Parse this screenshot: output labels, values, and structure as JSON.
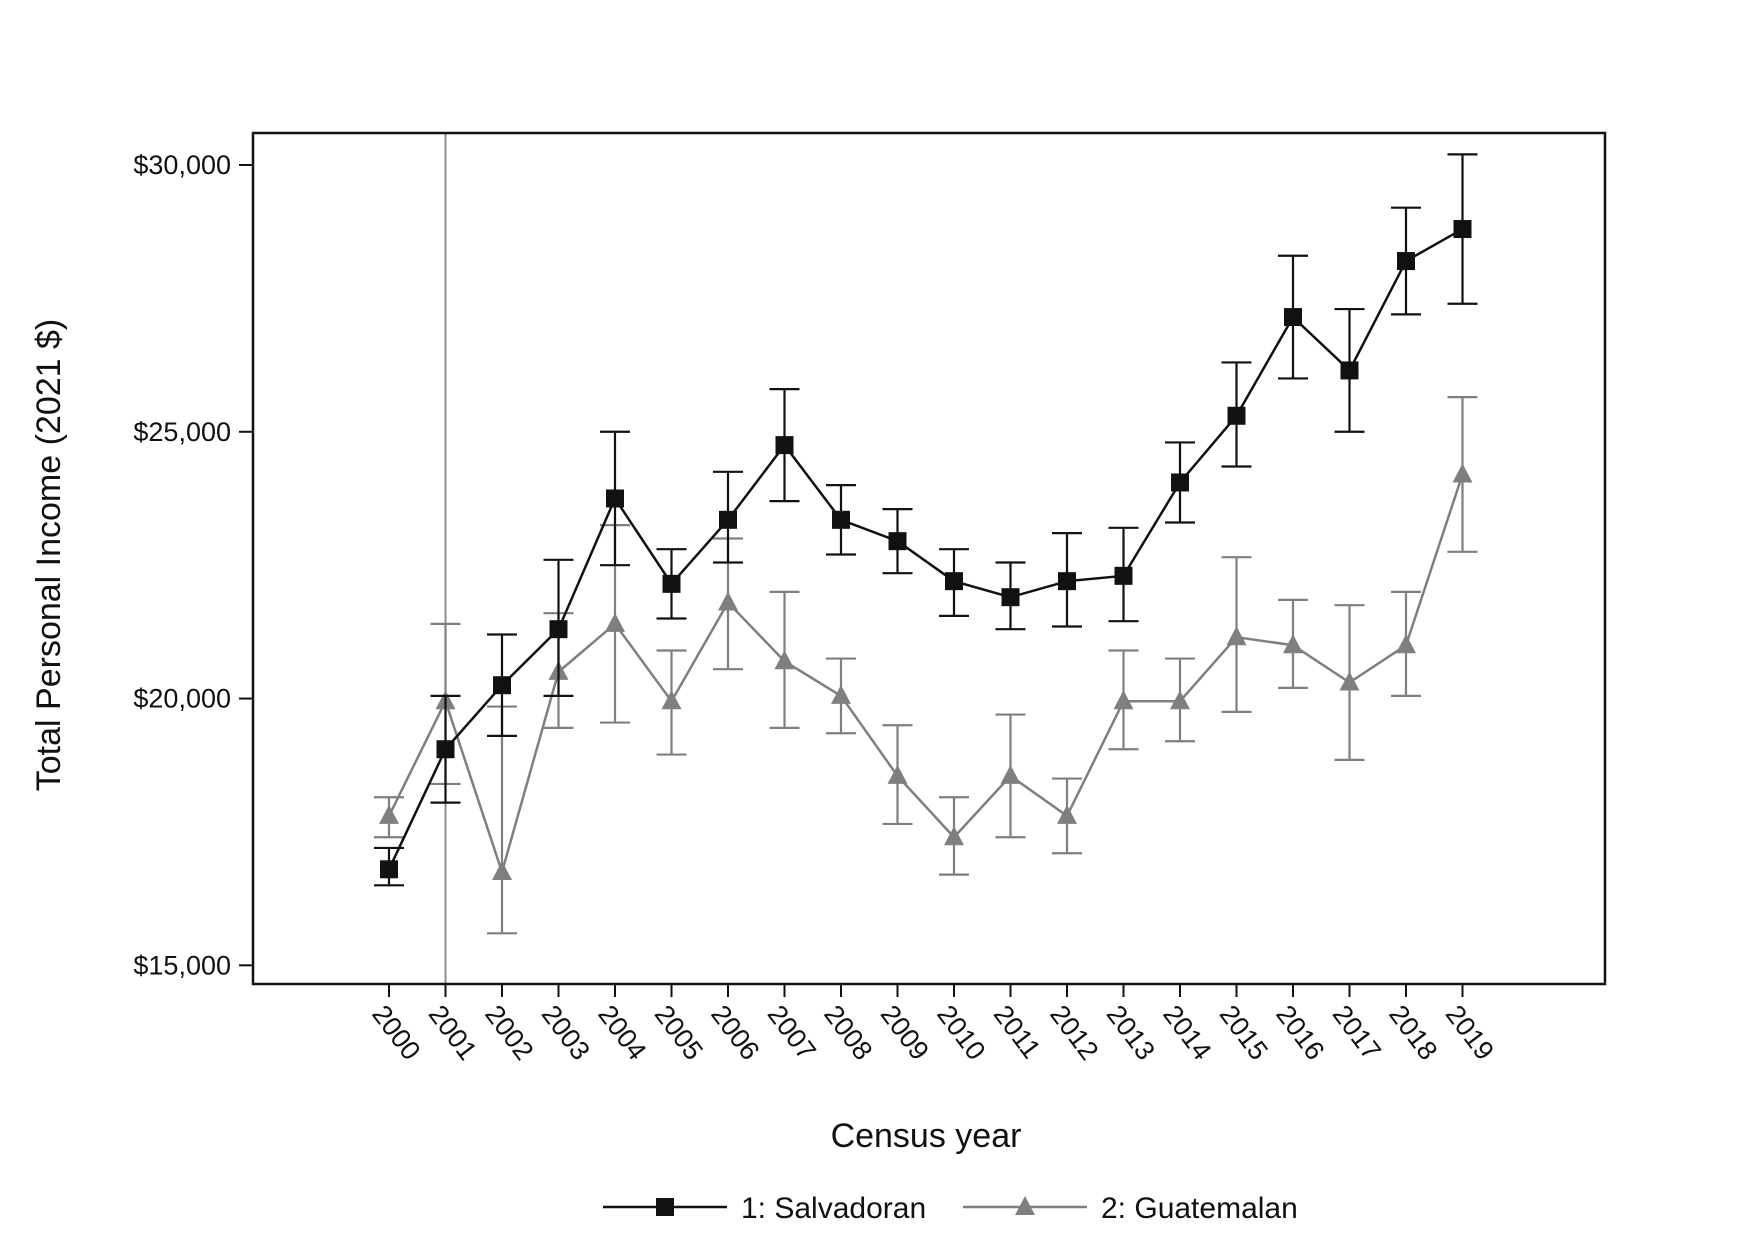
{
  "chart_data": {
    "type": "line",
    "title": "",
    "xlabel": "Census year",
    "ylabel": "Total Personal Income (2021 $)",
    "x": [
      "2000",
      "2001",
      "2002",
      "2003",
      "2004",
      "2005",
      "2006",
      "2007",
      "2008",
      "2009",
      "2010",
      "2011",
      "2012",
      "2013",
      "2014",
      "2015",
      "2016",
      "2017",
      "2018",
      "2019"
    ],
    "ylim": [
      14650,
      30600
    ],
    "yticks": [
      15000,
      20000,
      25000,
      30000
    ],
    "ytick_labels": [
      "$15,000",
      "$20,000",
      "$25,000",
      "$30,000"
    ],
    "grid": false,
    "reference_line_x": "2001",
    "legend_position": "bottom-center",
    "series": [
      {
        "name": "1: Salvadoran",
        "color": "#111111",
        "marker": "square",
        "values": [
          16800,
          19050,
          20250,
          21300,
          23750,
          22150,
          23350,
          24750,
          23350,
          22950,
          22200,
          21900,
          22200,
          22300,
          24050,
          25300,
          27150,
          26150,
          28200,
          28800
        ],
        "lower": [
          16500,
          18050,
          19300,
          20050,
          22500,
          21500,
          22550,
          23700,
          22700,
          22350,
          21550,
          21300,
          21350,
          21450,
          23300,
          24350,
          26000,
          25000,
          27200,
          27400
        ],
        "upper": [
          17200,
          20050,
          21200,
          22600,
          25000,
          22800,
          24250,
          25800,
          24000,
          23550,
          22800,
          22550,
          23100,
          23200,
          24800,
          26300,
          28300,
          27300,
          29200,
          30200
        ]
      },
      {
        "name": "2: Guatemalan",
        "color": "#7f7f7f",
        "marker": "triangle",
        "values": [
          17800,
          19950,
          16750,
          20500,
          21400,
          19950,
          21800,
          20700,
          20050,
          18550,
          17400,
          18550,
          17800,
          19950,
          19950,
          21150,
          21000,
          20300,
          21000,
          24200
        ],
        "lower": [
          17400,
          18400,
          15600,
          19450,
          19550,
          18950,
          20550,
          19450,
          19350,
          17650,
          16700,
          17400,
          17100,
          19050,
          19200,
          19750,
          20200,
          18850,
          20050,
          22750
        ],
        "upper": [
          18150,
          21400,
          19850,
          21600,
          23250,
          20900,
          23000,
          22000,
          20750,
          19500,
          18150,
          19700,
          18500,
          20900,
          20750,
          22650,
          21850,
          21750,
          22000,
          25650
        ]
      }
    ]
  }
}
